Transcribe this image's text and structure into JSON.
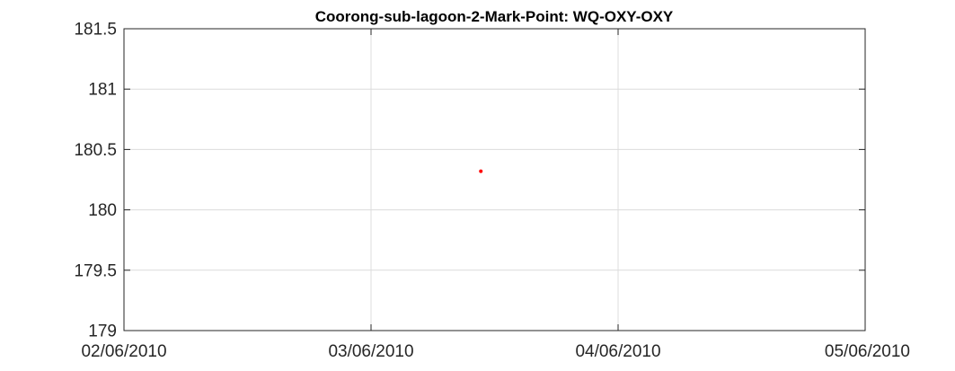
{
  "chart_data": {
    "type": "scatter",
    "title": "Coorong-sub-lagoon-2-Mark-Point: WQ-OXY-OXY",
    "xlabel": "",
    "ylabel": "",
    "x_ticks": [
      "02/06/2010",
      "03/06/2010",
      "04/06/2010",
      "05/06/2010"
    ],
    "xlim": [
      "02/06/2010",
      "05/06/2010"
    ],
    "y_ticks": [
      "179",
      "179.5",
      "180",
      "180.5",
      "181",
      "181.5"
    ],
    "ylim": [
      179,
      181.5
    ],
    "grid": true,
    "series": [
      {
        "color": "#ff0000",
        "points": [
          {
            "x": "03/06/2010 10:40",
            "y": 180.32
          }
        ]
      }
    ]
  }
}
